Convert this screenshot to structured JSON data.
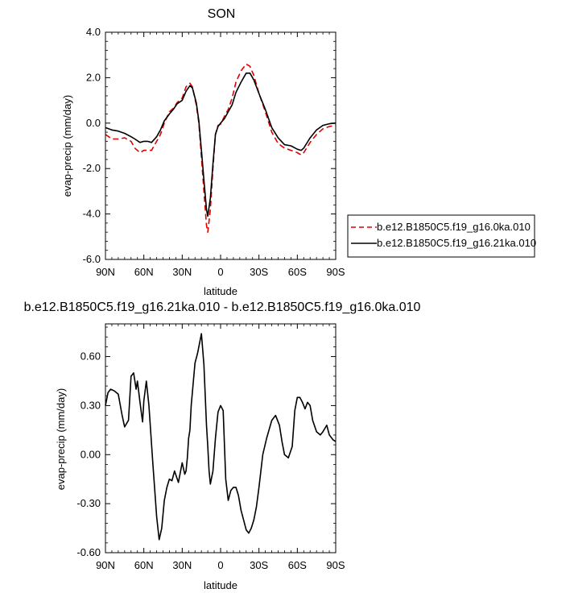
{
  "chart_data": [
    {
      "type": "line",
      "title": "SON",
      "xlabel": "latitude",
      "ylabel": "evap-precip (mm/day)",
      "xlim": [
        90,
        -90
      ],
      "ylim": [
        -6.0,
        4.0
      ],
      "x_ticks": [
        {
          "v": 90,
          "label": "90N"
        },
        {
          "v": 60,
          "label": "60N"
        },
        {
          "v": 30,
          "label": "30N"
        },
        {
          "v": 0,
          "label": "0"
        },
        {
          "v": -30,
          "label": "30S"
        },
        {
          "v": -60,
          "label": "60S"
        },
        {
          "v": -90,
          "label": "90S"
        }
      ],
      "y_ticks": [
        {
          "v": 4.0,
          "label": "4.0"
        },
        {
          "v": 2.0,
          "label": "2.0"
        },
        {
          "v": 0.0,
          "label": "0.0"
        },
        {
          "v": -2.0,
          "label": "-2.0"
        },
        {
          "v": -4.0,
          "label": "-4.0"
        },
        {
          "v": -6.0,
          "label": "-6.0"
        }
      ],
      "grid": false,
      "legend_position": "right-bottom",
      "series": [
        {
          "name": "b.e12.B1850C5.f19_g16.0ka.010",
          "color": "#e00000",
          "dash": "dashed",
          "x": [
            90,
            85,
            80,
            75,
            70,
            67,
            63,
            60,
            57,
            54,
            50,
            47,
            44,
            40,
            37,
            34,
            30,
            27,
            24,
            22,
            19,
            17,
            15,
            13,
            11,
            10,
            8,
            6,
            4,
            2,
            0,
            -3,
            -6,
            -9,
            -12,
            -16,
            -20,
            -23,
            -26,
            -30,
            -35,
            -40,
            -45,
            -50,
            -55,
            -60,
            -63,
            -65,
            -70,
            -75,
            -80,
            -85,
            -90
          ],
          "y": [
            -0.5,
            -0.7,
            -0.7,
            -0.65,
            -0.8,
            -1.1,
            -1.3,
            -1.2,
            -1.2,
            -1.2,
            -0.8,
            -0.5,
            0.0,
            0.5,
            0.65,
            0.9,
            1.1,
            1.6,
            1.75,
            1.6,
            0.8,
            0.0,
            -1.5,
            -3.0,
            -4.5,
            -4.8,
            -3.8,
            -2.0,
            -0.5,
            -0.1,
            -0.05,
            0.3,
            0.6,
            1.1,
            1.8,
            2.3,
            2.6,
            2.5,
            2.1,
            1.3,
            0.5,
            -0.4,
            -0.9,
            -1.1,
            -1.2,
            -1.3,
            -1.4,
            -1.3,
            -0.85,
            -0.5,
            -0.25,
            -0.15,
            -0.1
          ]
        },
        {
          "name": "b.e12.B1850C5.f19_g16.21ka.010",
          "color": "#000000",
          "dash": "solid",
          "x": [
            90,
            85,
            80,
            75,
            70,
            67,
            63,
            60,
            57,
            54,
            50,
            47,
            44,
            40,
            37,
            34,
            30,
            27,
            24,
            22,
            19,
            17,
            15,
            13,
            11,
            10,
            8,
            6,
            4,
            2,
            0,
            -3,
            -6,
            -9,
            -12,
            -16,
            -20,
            -23,
            -26,
            -30,
            -35,
            -40,
            -45,
            -50,
            -55,
            -60,
            -63,
            -65,
            -70,
            -75,
            -80,
            -85,
            -90
          ],
          "y": [
            -0.2,
            -0.3,
            -0.35,
            -0.45,
            -0.6,
            -0.7,
            -0.85,
            -0.8,
            -0.8,
            -0.85,
            -0.6,
            -0.3,
            0.1,
            0.4,
            0.6,
            0.85,
            1.0,
            1.4,
            1.65,
            1.55,
            0.9,
            0.1,
            -1.2,
            -2.5,
            -3.8,
            -4.1,
            -3.3,
            -1.8,
            -0.5,
            -0.15,
            0.0,
            0.2,
            0.5,
            0.8,
            1.35,
            1.8,
            2.2,
            2.2,
            1.9,
            1.3,
            0.6,
            -0.2,
            -0.65,
            -0.95,
            -1.0,
            -1.15,
            -1.2,
            -1.1,
            -0.65,
            -0.3,
            -0.1,
            -0.03,
            0.0
          ]
        }
      ]
    },
    {
      "type": "line",
      "title": "b.e12.B1850C5.f19_g16.21ka.010 - b.e12.B1850C5.f19_g16.0ka.010",
      "xlabel": "latitude",
      "ylabel": "evap-precip (mm/day)",
      "xlim": [
        90,
        -90
      ],
      "ylim": [
        -0.6,
        0.8
      ],
      "x_ticks": [
        {
          "v": 90,
          "label": "90N"
        },
        {
          "v": 60,
          "label": "60N"
        },
        {
          "v": 30,
          "label": "30N"
        },
        {
          "v": 0,
          "label": "0"
        },
        {
          "v": -30,
          "label": "30S"
        },
        {
          "v": -60,
          "label": "60S"
        },
        {
          "v": -90,
          "label": "90S"
        }
      ],
      "y_ticks": [
        {
          "v": 0.6,
          "label": "0.60"
        },
        {
          "v": 0.3,
          "label": "0.30"
        },
        {
          "v": 0.0,
          "label": "0.00"
        },
        {
          "v": -0.3,
          "label": "-0.30"
        },
        {
          "v": -0.6,
          "label": "-0.60"
        }
      ],
      "grid": false,
      "series": [
        {
          "color": "#000000",
          "dash": "solid",
          "x": [
            90,
            88,
            86,
            83,
            80,
            77,
            75,
            72,
            70,
            68,
            66,
            65,
            63,
            61,
            60,
            58,
            56,
            53,
            50,
            48,
            46,
            44,
            42,
            40,
            38,
            36,
            33,
            30,
            28,
            27,
            26,
            25,
            24,
            23,
            20,
            18,
            15,
            13,
            11,
            10,
            9,
            8,
            6,
            4,
            2,
            0,
            -2,
            -4,
            -6,
            -8,
            -10,
            -12,
            -14,
            -16,
            -18,
            -20,
            -22,
            -24,
            -26,
            -28,
            -30,
            -33,
            -36,
            -40,
            -43,
            -46,
            -48,
            -50,
            -53,
            -56,
            -58,
            -60,
            -62,
            -64,
            -66,
            -68,
            -70,
            -72,
            -75,
            -78,
            -80,
            -83,
            -85,
            -88,
            -90
          ],
          "y": [
            0.3,
            0.38,
            0.4,
            0.39,
            0.37,
            0.24,
            0.17,
            0.21,
            0.48,
            0.5,
            0.4,
            0.45,
            0.32,
            0.2,
            0.33,
            0.45,
            0.3,
            -0.05,
            -0.38,
            -0.52,
            -0.45,
            -0.28,
            -0.2,
            -0.15,
            -0.16,
            -0.1,
            -0.17,
            -0.05,
            -0.12,
            -0.1,
            -0.02,
            0.1,
            0.15,
            0.3,
            0.56,
            0.62,
            0.74,
            0.55,
            0.18,
            0.05,
            -0.1,
            -0.18,
            -0.1,
            0.1,
            0.26,
            0.3,
            0.27,
            -0.15,
            -0.28,
            -0.22,
            -0.2,
            -0.2,
            -0.25,
            -0.34,
            -0.4,
            -0.46,
            -0.48,
            -0.45,
            -0.4,
            -0.32,
            -0.2,
            0.0,
            0.1,
            0.21,
            0.24,
            0.18,
            0.08,
            0.0,
            -0.02,
            0.05,
            0.27,
            0.35,
            0.35,
            0.32,
            0.28,
            0.32,
            0.3,
            0.21,
            0.14,
            0.12,
            0.14,
            0.18,
            0.12,
            0.09,
            0.08
          ]
        }
      ]
    }
  ],
  "legend": {
    "items": [
      {
        "label": "b.e12.B1850C5.f19_g16.0ka.010",
        "color": "#e00000",
        "dash": "dashed"
      },
      {
        "label": "b.e12.B1850C5.f19_g16.21ka.010",
        "color": "#000000",
        "dash": "solid"
      }
    ]
  }
}
